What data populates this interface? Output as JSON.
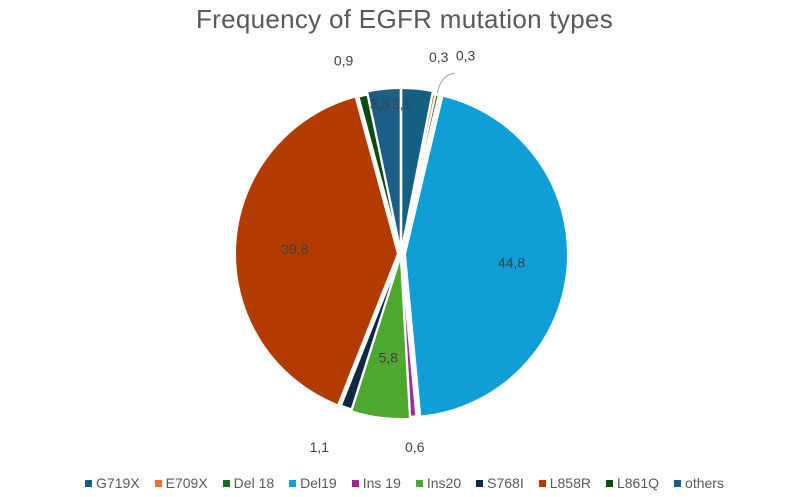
{
  "chart_data": {
    "type": "pie",
    "title": "Frequency of EGFR mutation types",
    "categories": [
      "G719X",
      "E709X",
      "Del 18",
      "Del19",
      "Ins 19",
      "Ins20",
      "S768I",
      "L858R",
      "L861Q",
      "others"
    ],
    "values": [
      3.1,
      0.3,
      0.3,
      44.8,
      0.6,
      5.8,
      1.1,
      39.8,
      0.9,
      3.3
    ],
    "value_labels": [
      "3,1",
      "0,3",
      "0,3",
      "44,8",
      "0,6",
      "5,8",
      "1,1",
      "39,8",
      "0,9",
      "3,3"
    ],
    "colors": [
      "#156082",
      "#E97132",
      "#196B24",
      "#0F9ED5",
      "#A02B93",
      "#4EA72E",
      "#0E2841",
      "#B23B00",
      "#0B4D0F",
      "#1B5E86"
    ],
    "legend_position": "bottom",
    "start_angle_deg": 0,
    "direction": "clockwise"
  }
}
